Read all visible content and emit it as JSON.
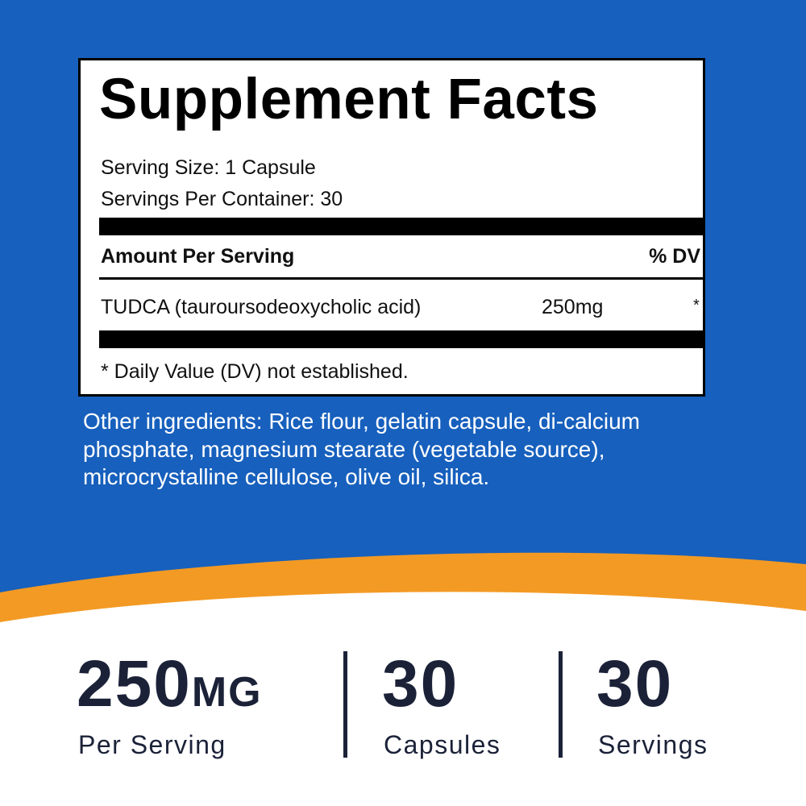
{
  "facts": {
    "title": "Supplement Facts",
    "serving_size": "Serving Size: 1 Capsule",
    "servings_per_container": "Servings Per Container: 30",
    "header": {
      "amount": "Amount Per Serving",
      "dv": "% DV"
    },
    "row": {
      "name": "TUDCA (tauroursodeoxycholic acid)",
      "amount": "250mg",
      "dv": "*"
    },
    "footnote": "* Daily Value (DV) not established."
  },
  "other_ingredients": [
    "Other ingredients: Rice flour, gelatin capsule, di-calcium",
    "phosphate, magnesium stearate (vegetable source),",
    "microcrystalline cellulose, olive oil, silica."
  ],
  "stats": [
    {
      "number": "250",
      "unit": "MG",
      "label": "Per Serving"
    },
    {
      "number": "30",
      "label": "Capsules"
    },
    {
      "number": "30",
      "label": "Servings"
    }
  ]
}
